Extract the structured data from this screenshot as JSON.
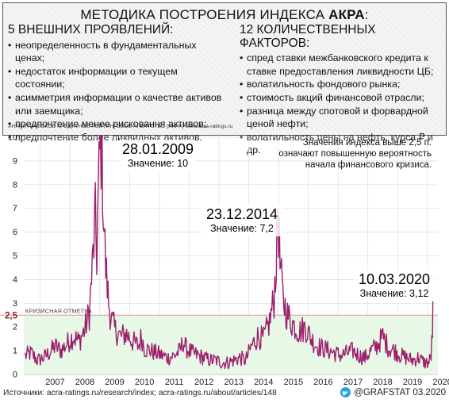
{
  "header": {
    "title_main": "МЕТОДИКА ПОСТРОЕНИЯ ИНДЕКСА ",
    "title_bold": "АКРА",
    "title_end": ":",
    "left_heading": "5 ВНЕШНИХ ПРОЯВЛЕНИЙ:",
    "left_items": [
      "неопределенность в фундаментальных ценах;",
      "недостаток информации о текущем состоянии;",
      "асимметрия информации о качестве активов или заемщика;",
      "предпочтение менее рисковання активов;",
      "предпочтение более ликвидных активов."
    ],
    "right_heading": "12 КОЛИЧЕСТВЕННЫХ ФАКТОРОВ:",
    "right_items": [
      "спред ставки межбанковского кредита к ставке предоставления ликвидности ЦБ;",
      "волатильность фондового рынка;",
      "стоимость акций финансовой отрасли;",
      "разница между спотовой и форвардной ценой нефти;",
      "волатильность цены на нефть, курса ₽ и др."
    ],
    "agency": "АНАЛИТИЧЕСКОЕ КРЕДИТНОЕ РЕЙТИНГОВОЕ АГЕНТСТВО (АКРА) www.acra-ratings.ru"
  },
  "footer": {
    "sources": "Источники: acra-ratings.ru/research/index; acra-ratings.ru/about/articles/148",
    "credit": "@GRAFSTAT 03.2020"
  },
  "colors": {
    "line": "#9c1f6c",
    "zone": "#e8f8e6",
    "threshold": "#d69a9a",
    "threshold_label": "#8a1f1f"
  },
  "chart_data": {
    "type": "line",
    "title": "",
    "xlabel": "",
    "ylabel": "",
    "xlim": [
      2006.45,
      2020.35
    ],
    "ylim": [
      0,
      10
    ],
    "grid": true,
    "x_ticks": [
      "2007",
      "2008",
      "2009",
      "2010",
      "2011",
      "2012",
      "2013",
      "2014",
      "2015",
      "2016",
      "2017",
      "2018",
      "2019",
      "2020"
    ],
    "y_ticks": [
      "0",
      "1",
      "2",
      "3",
      "4",
      "5",
      "6",
      "7",
      "8",
      "9",
      "10"
    ],
    "threshold": {
      "value": 2.5,
      "value_label": "2,5",
      "label": "КРИЗИСНАЯ ОТМЕТКА"
    },
    "note_lines": [
      "Значения индекса выше 2,5 п.",
      "означают повышенную вероятность",
      "начала финансового кризиса."
    ],
    "annotations": [
      {
        "date": "28.01.2009",
        "label": "Значение: 10",
        "x": 2009.07,
        "value": 10
      },
      {
        "date": "23.12.2014",
        "label": "Значение: 7,2",
        "x": 2014.98,
        "value": 7.2
      },
      {
        "date": "10.03.2020",
        "label": "Значение: 3,12",
        "x": 2020.19,
        "value": 3.12
      }
    ],
    "series": [
      {
        "x": [
          2006.5,
          2006.7,
          2006.9,
          2007.1,
          2007.3,
          2007.5,
          2007.7,
          2007.9,
          2008.1,
          2008.3,
          2008.5,
          2008.65,
          2008.75,
          2008.85,
          2008.9,
          2008.95,
          2009.0,
          2009.07,
          2009.12,
          2009.2,
          2009.3,
          2009.4,
          2009.5,
          2009.7,
          2009.9,
          2010.1,
          2010.3,
          2010.4,
          2010.5,
          2010.7,
          2010.9,
          2011.1,
          2011.3,
          2011.5,
          2011.7,
          2011.8,
          2011.9,
          2012.1,
          2012.3,
          2012.5,
          2012.7,
          2012.9,
          2013.1,
          2013.3,
          2013.5,
          2013.7,
          2013.9,
          2014.1,
          2014.3,
          2014.5,
          2014.7,
          2014.85,
          2014.95,
          2014.98,
          2015.05,
          2015.15,
          2015.3,
          2015.5,
          2015.7,
          2015.9,
          2016.1,
          2016.3,
          2016.5,
          2016.7,
          2016.9,
          2017.1,
          2017.3,
          2017.5,
          2017.7,
          2017.9,
          2018.1,
          2018.3,
          2018.5,
          2018.7,
          2018.9,
          2019.1,
          2019.3,
          2019.5,
          2019.7,
          2019.9,
          2020.05,
          2020.12,
          2020.17,
          2020.19
        ],
        "values": [
          0.8,
          0.9,
          0.6,
          0.7,
          0.9,
          1.2,
          1.0,
          1.3,
          1.6,
          1.4,
          1.9,
          2.6,
          4.5,
          6.5,
          5.0,
          7.5,
          9.2,
          10.0,
          7.0,
          4.5,
          3.0,
          2.3,
          1.9,
          1.6,
          1.7,
          1.4,
          1.2,
          1.6,
          1.1,
          1.0,
          0.9,
          0.8,
          0.7,
          0.8,
          1.0,
          1.4,
          1.1,
          0.9,
          0.8,
          0.7,
          0.6,
          0.6,
          0.5,
          0.5,
          0.6,
          0.7,
          0.6,
          1.2,
          1.6,
          1.5,
          2.2,
          3.2,
          5.5,
          7.2,
          4.6,
          3.2,
          2.5,
          2.1,
          1.8,
          2.0,
          1.5,
          1.2,
          1.1,
          1.0,
          0.9,
          0.8,
          0.9,
          1.0,
          0.8,
          0.7,
          1.0,
          1.2,
          1.6,
          1.1,
          1.0,
          0.8,
          0.7,
          0.6,
          0.7,
          0.5,
          0.5,
          0.8,
          1.8,
          3.12
        ]
      }
    ]
  }
}
